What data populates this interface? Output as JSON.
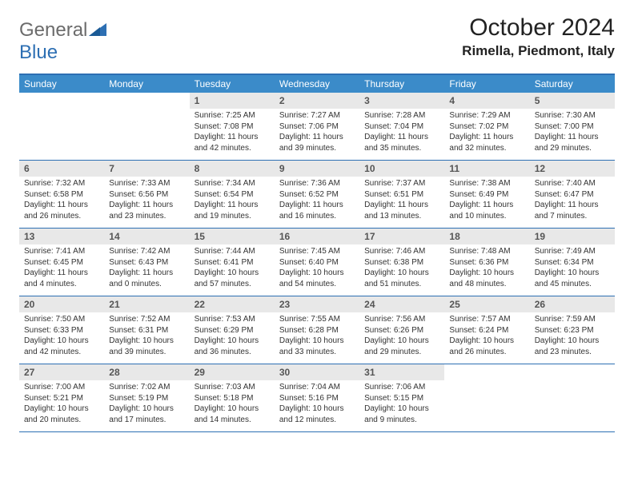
{
  "brand": {
    "part1": "General",
    "part2": "Blue"
  },
  "title": "October 2024",
  "location": "Rimella, Piedmont, Italy",
  "colors": {
    "header_bg": "#3b8bc9",
    "border": "#2d6fb3",
    "daynum_bg": "#e8e8e8",
    "text": "#333333",
    "logo_gray": "#6b6b6b",
    "logo_blue": "#2d6fb3"
  },
  "weekdays": [
    "Sunday",
    "Monday",
    "Tuesday",
    "Wednesday",
    "Thursday",
    "Friday",
    "Saturday"
  ],
  "weeks": [
    [
      {
        "empty": true
      },
      {
        "empty": true
      },
      {
        "n": "1",
        "sr": "7:25 AM",
        "ss": "7:08 PM",
        "dl": "11 hours and 42 minutes."
      },
      {
        "n": "2",
        "sr": "7:27 AM",
        "ss": "7:06 PM",
        "dl": "11 hours and 39 minutes."
      },
      {
        "n": "3",
        "sr": "7:28 AM",
        "ss": "7:04 PM",
        "dl": "11 hours and 35 minutes."
      },
      {
        "n": "4",
        "sr": "7:29 AM",
        "ss": "7:02 PM",
        "dl": "11 hours and 32 minutes."
      },
      {
        "n": "5",
        "sr": "7:30 AM",
        "ss": "7:00 PM",
        "dl": "11 hours and 29 minutes."
      }
    ],
    [
      {
        "n": "6",
        "sr": "7:32 AM",
        "ss": "6:58 PM",
        "dl": "11 hours and 26 minutes."
      },
      {
        "n": "7",
        "sr": "7:33 AM",
        "ss": "6:56 PM",
        "dl": "11 hours and 23 minutes."
      },
      {
        "n": "8",
        "sr": "7:34 AM",
        "ss": "6:54 PM",
        "dl": "11 hours and 19 minutes."
      },
      {
        "n": "9",
        "sr": "7:36 AM",
        "ss": "6:52 PM",
        "dl": "11 hours and 16 minutes."
      },
      {
        "n": "10",
        "sr": "7:37 AM",
        "ss": "6:51 PM",
        "dl": "11 hours and 13 minutes."
      },
      {
        "n": "11",
        "sr": "7:38 AM",
        "ss": "6:49 PM",
        "dl": "11 hours and 10 minutes."
      },
      {
        "n": "12",
        "sr": "7:40 AM",
        "ss": "6:47 PM",
        "dl": "11 hours and 7 minutes."
      }
    ],
    [
      {
        "n": "13",
        "sr": "7:41 AM",
        "ss": "6:45 PM",
        "dl": "11 hours and 4 minutes."
      },
      {
        "n": "14",
        "sr": "7:42 AM",
        "ss": "6:43 PM",
        "dl": "11 hours and 0 minutes."
      },
      {
        "n": "15",
        "sr": "7:44 AM",
        "ss": "6:41 PM",
        "dl": "10 hours and 57 minutes."
      },
      {
        "n": "16",
        "sr": "7:45 AM",
        "ss": "6:40 PM",
        "dl": "10 hours and 54 minutes."
      },
      {
        "n": "17",
        "sr": "7:46 AM",
        "ss": "6:38 PM",
        "dl": "10 hours and 51 minutes."
      },
      {
        "n": "18",
        "sr": "7:48 AM",
        "ss": "6:36 PM",
        "dl": "10 hours and 48 minutes."
      },
      {
        "n": "19",
        "sr": "7:49 AM",
        "ss": "6:34 PM",
        "dl": "10 hours and 45 minutes."
      }
    ],
    [
      {
        "n": "20",
        "sr": "7:50 AM",
        "ss": "6:33 PM",
        "dl": "10 hours and 42 minutes."
      },
      {
        "n": "21",
        "sr": "7:52 AM",
        "ss": "6:31 PM",
        "dl": "10 hours and 39 minutes."
      },
      {
        "n": "22",
        "sr": "7:53 AM",
        "ss": "6:29 PM",
        "dl": "10 hours and 36 minutes."
      },
      {
        "n": "23",
        "sr": "7:55 AM",
        "ss": "6:28 PM",
        "dl": "10 hours and 33 minutes."
      },
      {
        "n": "24",
        "sr": "7:56 AM",
        "ss": "6:26 PM",
        "dl": "10 hours and 29 minutes."
      },
      {
        "n": "25",
        "sr": "7:57 AM",
        "ss": "6:24 PM",
        "dl": "10 hours and 26 minutes."
      },
      {
        "n": "26",
        "sr": "7:59 AM",
        "ss": "6:23 PM",
        "dl": "10 hours and 23 minutes."
      }
    ],
    [
      {
        "n": "27",
        "sr": "7:00 AM",
        "ss": "5:21 PM",
        "dl": "10 hours and 20 minutes."
      },
      {
        "n": "28",
        "sr": "7:02 AM",
        "ss": "5:19 PM",
        "dl": "10 hours and 17 minutes."
      },
      {
        "n": "29",
        "sr": "7:03 AM",
        "ss": "5:18 PM",
        "dl": "10 hours and 14 minutes."
      },
      {
        "n": "30",
        "sr": "7:04 AM",
        "ss": "5:16 PM",
        "dl": "10 hours and 12 minutes."
      },
      {
        "n": "31",
        "sr": "7:06 AM",
        "ss": "5:15 PM",
        "dl": "10 hours and 9 minutes."
      },
      {
        "empty": true
      },
      {
        "empty": true
      }
    ]
  ],
  "labels": {
    "sunrise": "Sunrise:",
    "sunset": "Sunset:",
    "daylight": "Daylight:"
  }
}
